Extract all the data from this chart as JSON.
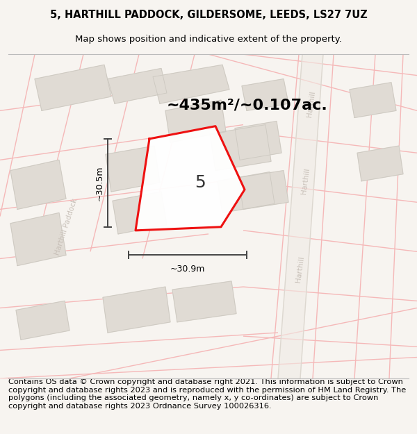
{
  "title_line1": "5, HARTHILL PADDOCK, GILDERSOME, LEEDS, LS27 7UZ",
  "title_line2": "Map shows position and indicative extent of the property.",
  "area_text": "~435m²/~0.107ac.",
  "property_number": "5",
  "dim_horizontal": "~30.9m",
  "dim_vertical": "~30.5m",
  "footer_text": "Contains OS data © Crown copyright and database right 2021. This information is subject to Crown copyright and database rights 2023 and is reproduced with the permission of HM Land Registry. The polygons (including the associated geometry, namely x, y co-ordinates) are subject to Crown copyright and database rights 2023 Ordnance Survey 100026316.",
  "bg_color": "#f7f4f0",
  "map_bg": "#f9f7f4",
  "property_fill": "#ffffff",
  "property_stroke": "#ee1111",
  "building_fill": "#e0dbd4",
  "building_stroke": "#ccc8c0",
  "road_color": "#f0ebe3",
  "street_fill": "#ffffff",
  "road_line_color": "#f5b8b8",
  "street_label_color": "#c8c0b8",
  "dim_line_color": "#444444",
  "title_fontsize": 10.5,
  "subtitle_fontsize": 9.5,
  "footer_fontsize": 8.2,
  "area_fontsize": 16,
  "property_num_fontsize": 18,
  "dim_fontsize": 9
}
